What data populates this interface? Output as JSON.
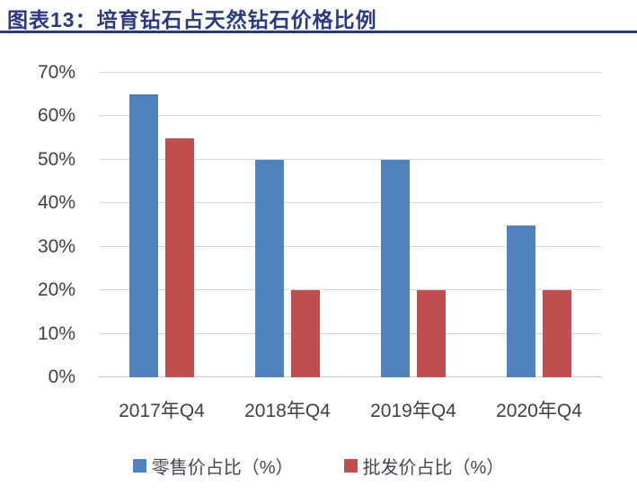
{
  "header": {
    "title": "图表13：培育钻石占天然钻石价格比例"
  },
  "chart_data": {
    "type": "bar",
    "title": "图表13：培育钻石占天然钻石价格比例",
    "categories": [
      "2017年Q4",
      "2018年Q4",
      "2019年Q4",
      "2020年Q4"
    ],
    "series": [
      {
        "name": "零售价占比（%）",
        "color": "#4F81BD",
        "values": [
          65,
          50,
          50,
          35
        ]
      },
      {
        "name": "批发价占比（%）",
        "color": "#C0504D",
        "values": [
          55,
          20,
          20,
          20
        ]
      }
    ],
    "xlabel": "",
    "ylabel": "",
    "ylim": [
      0,
      70
    ],
    "ytick_values": [
      0,
      10,
      20,
      30,
      40,
      50,
      60,
      70
    ],
    "yticks": [
      "0%",
      "10%",
      "20%",
      "30%",
      "40%",
      "50%",
      "60%",
      "70%"
    ],
    "grid": true,
    "legend_position": "bottom"
  },
  "colors": {
    "title_text": "#2B3A80",
    "header_rule": "#2B3A80",
    "axis_text": "#3F3F46",
    "gridline": "#D9D9D9",
    "retail_blue": "#4F81BD",
    "wholesale_red": "#C0504D"
  }
}
